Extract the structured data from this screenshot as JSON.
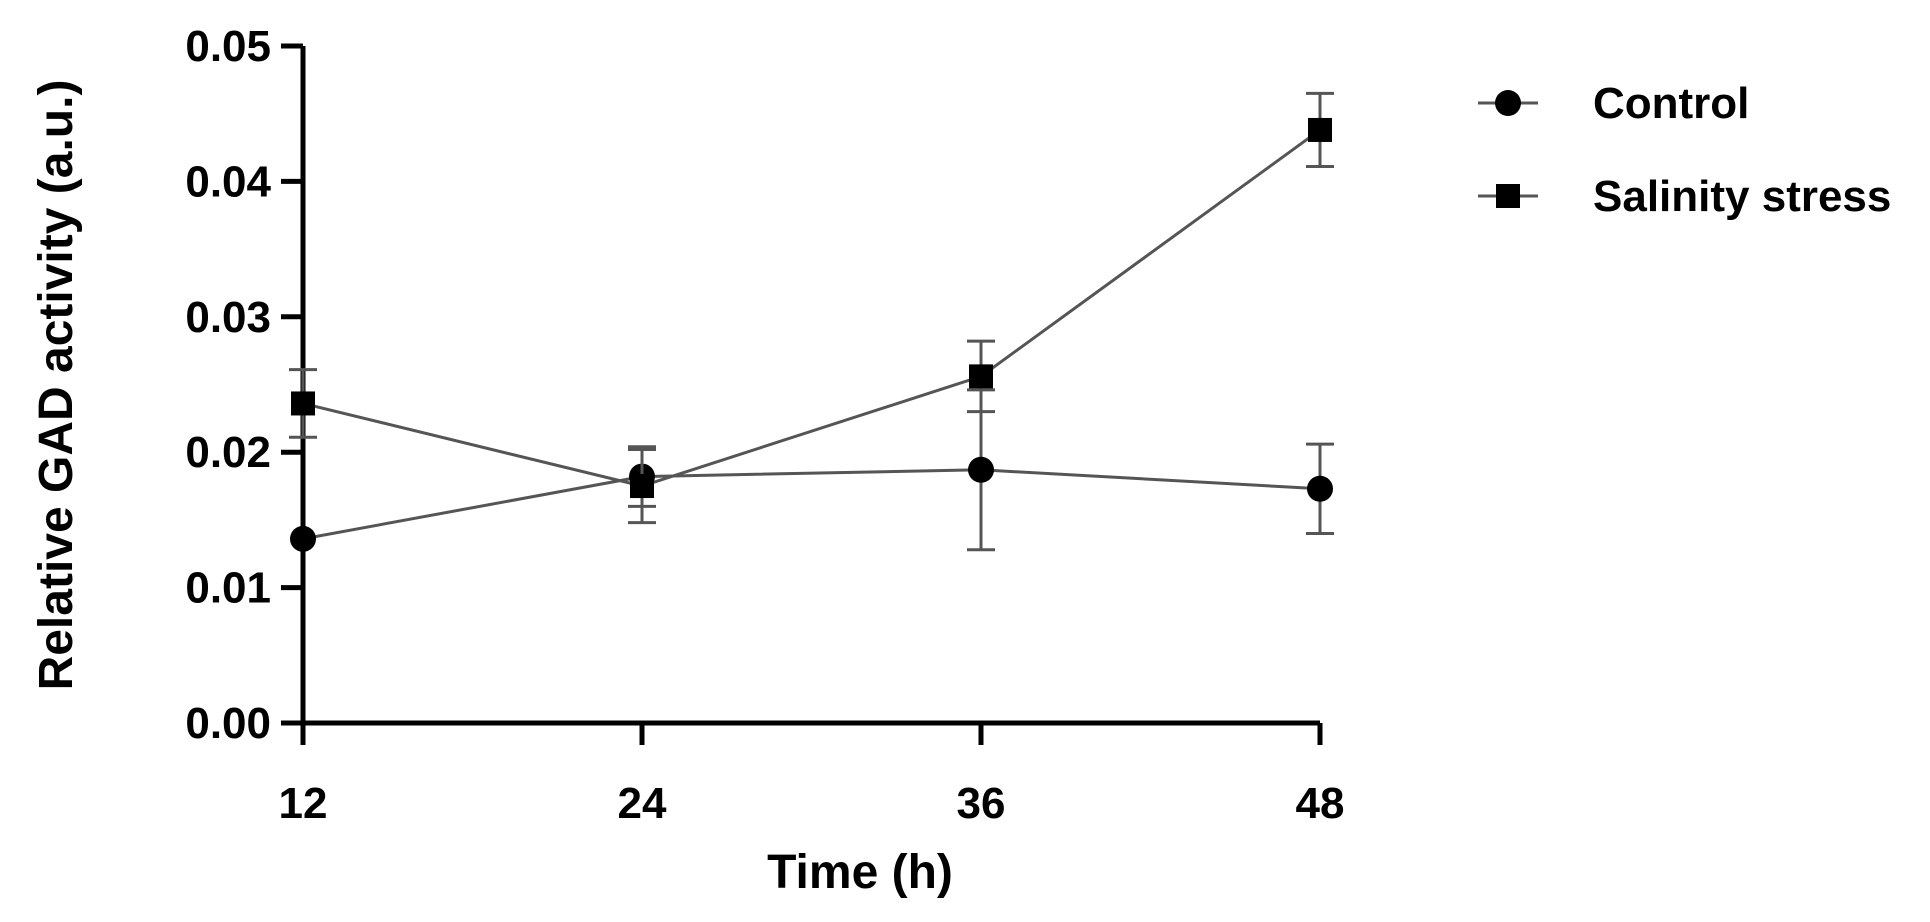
{
  "chart_data": {
    "type": "line",
    "xlabel": "Time (h)",
    "ylabel": "Relative GAD activity (a.u.)",
    "x": [
      12,
      24,
      36,
      48
    ],
    "xticks": [
      "12",
      "24",
      "36",
      "48"
    ],
    "yticks": [
      "0.00",
      "0.01",
      "0.02",
      "0.03",
      "0.04",
      "0.05"
    ],
    "ylim": [
      0,
      0.05
    ],
    "legend_position": "top-right",
    "series": [
      {
        "name": "Control",
        "marker": "circle",
        "values": [
          0.0136,
          0.0182,
          0.0187,
          0.0173
        ],
        "errors": [
          0.0,
          0.0022,
          0.0059,
          0.0033
        ]
      },
      {
        "name": "Salinity stress",
        "marker": "square",
        "values": [
          0.0236,
          0.0175,
          0.0256,
          0.0438
        ],
        "errors": [
          0.0025,
          0.0027,
          0.0026,
          0.0027
        ]
      }
    ]
  }
}
